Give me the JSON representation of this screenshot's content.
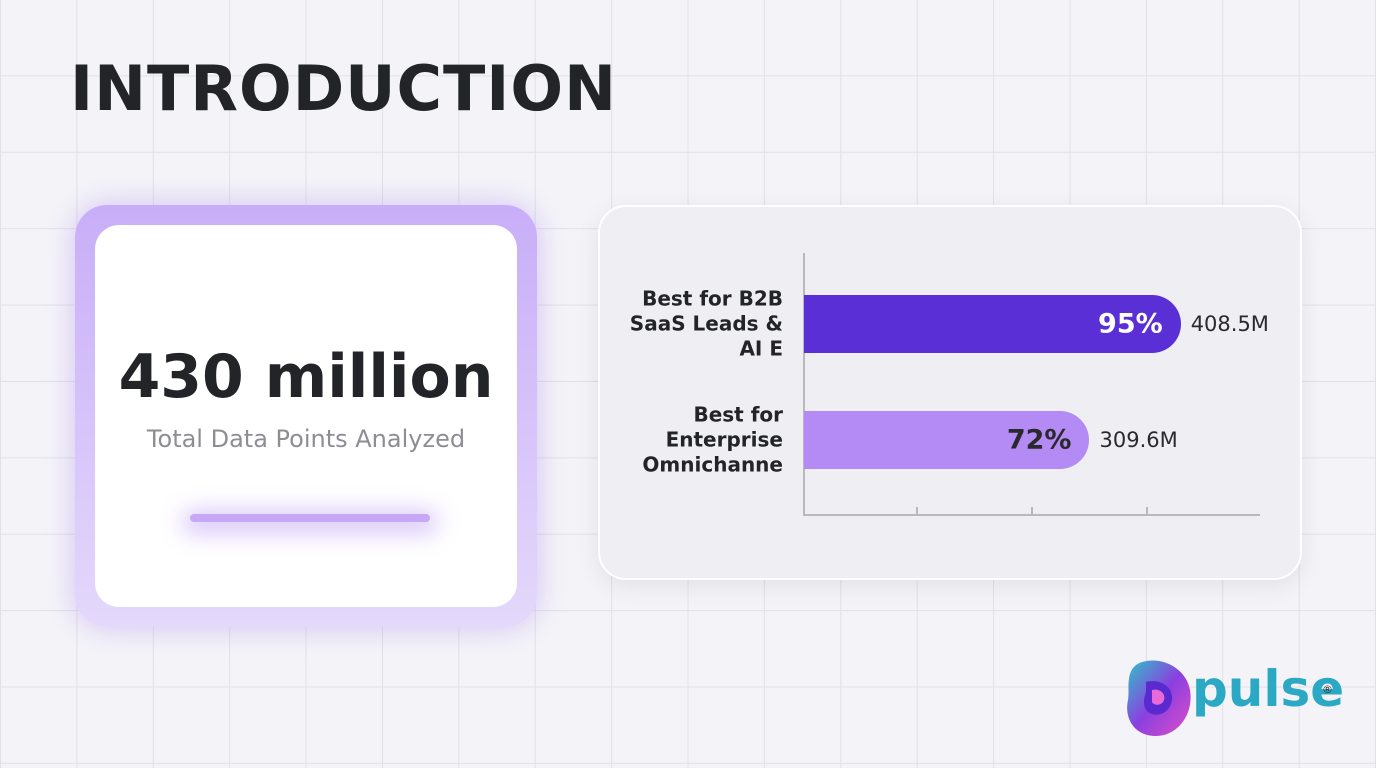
{
  "title": "INTRODUCTION",
  "stat": {
    "value": "430 million",
    "label": "Total Data Points Analyzed"
  },
  "chart_data": {
    "type": "bar",
    "orientation": "horizontal",
    "categories": [
      "Best for B2B SaaS Leads & AI E",
      "Best for Enterprise Omnichanne"
    ],
    "values": [
      95,
      72
    ],
    "value_labels": [
      "95%",
      "72%"
    ],
    "colors": [
      "#5b2fd6",
      "#b48af4"
    ],
    "counts": {
      "values": [
        408500000,
        309600000
      ],
      "value_labels": [
        "408.5M",
        "309.6M"
      ]
    },
    "xlim": [
      0,
      115
    ]
  },
  "logo": {
    "name": "pulse",
    "mark": "®"
  }
}
